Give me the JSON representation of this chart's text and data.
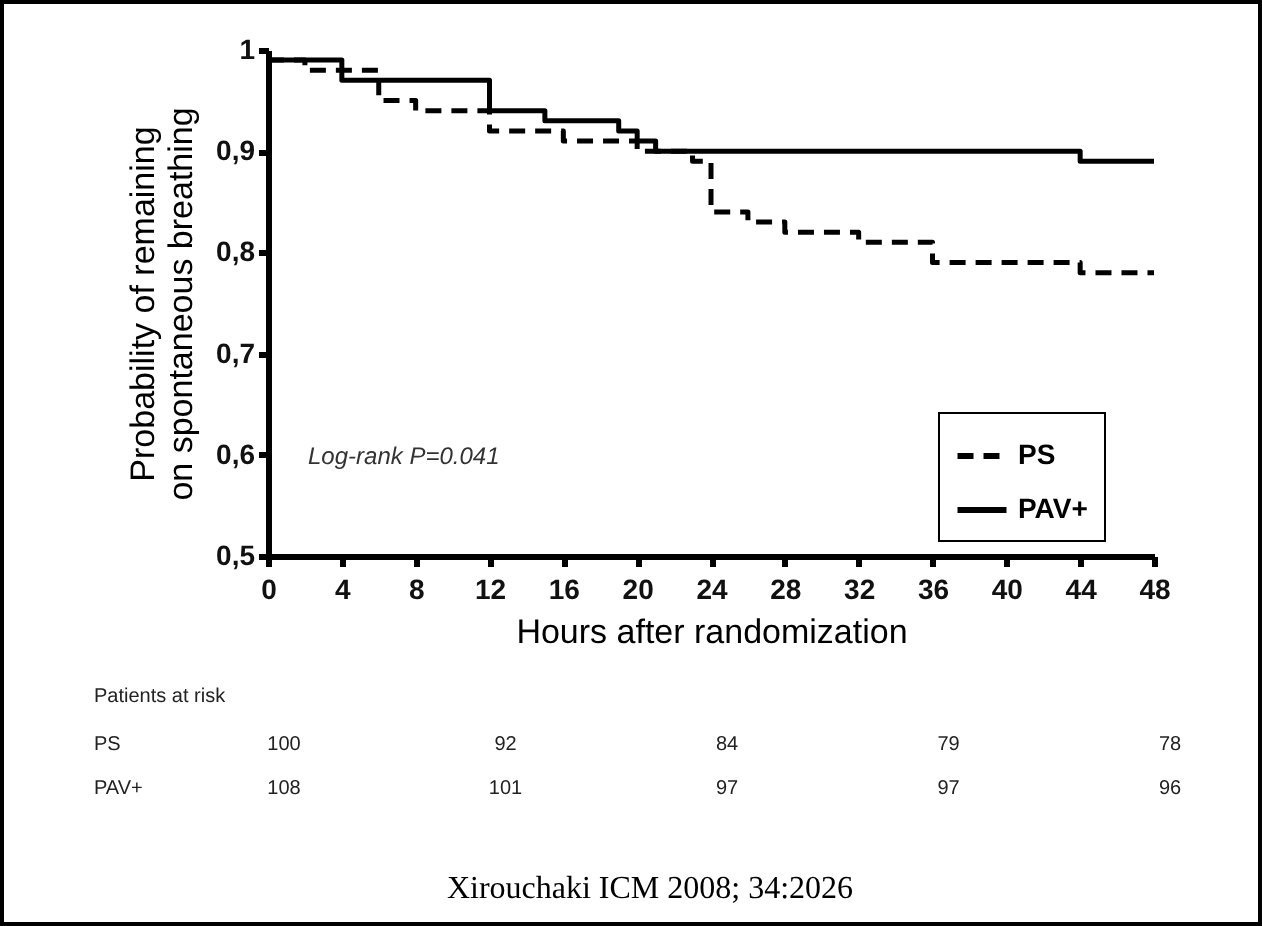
{
  "chart_data": {
    "type": "step",
    "xlabel": "Hours after randomization",
    "ylabel": "Probability of remaining on spontaneous breathing",
    "xlim": [
      0,
      48
    ],
    "xticks": [
      0,
      4,
      8,
      12,
      16,
      20,
      24,
      28,
      32,
      36,
      40,
      44,
      48
    ],
    "ylim": [
      0.5,
      1
    ],
    "yticks": [
      {
        "value": 0.5,
        "label": "0,5"
      },
      {
        "value": 0.6,
        "label": "0,6"
      },
      {
        "value": 0.7,
        "label": "0,7"
      },
      {
        "value": 0.8,
        "label": "0,8"
      },
      {
        "value": 0.9,
        "label": "0,9"
      },
      1
    ],
    "legend": "bottom right",
    "grid": false,
    "marker": "none",
    "series": [
      {
        "name": "PS",
        "color": "#000000",
        "line_style": "dashed",
        "x": [
          0,
          2,
          6,
          8,
          12,
          16,
          20,
          23,
          24,
          26,
          28,
          32,
          36,
          44,
          48
        ],
        "values": [
          0.99,
          0.98,
          0.95,
          0.94,
          0.92,
          0.91,
          0.9,
          0.89,
          0.84,
          0.83,
          0.82,
          0.81,
          0.79,
          0.78,
          0.78
        ]
      },
      {
        "name": "PAV+",
        "color": "#000000",
        "line_style": "solid",
        "x": [
          0,
          4,
          12,
          15,
          19,
          20,
          21,
          44,
          48
        ],
        "values": [
          0.99,
          0.97,
          0.94,
          0.93,
          0.92,
          0.91,
          0.9,
          0.89,
          0.89
        ]
      }
    ],
    "annotations": [
      "Log-rank P=0.041",
      "Patients at risk",
      "PS",
      "100",
      "92",
      "84",
      "79",
      "78",
      "PAV+",
      "108",
      "101",
      "97",
      "97",
      "96",
      "Xirouchaki ICM 2008; 34:2026"
    ]
  }
}
